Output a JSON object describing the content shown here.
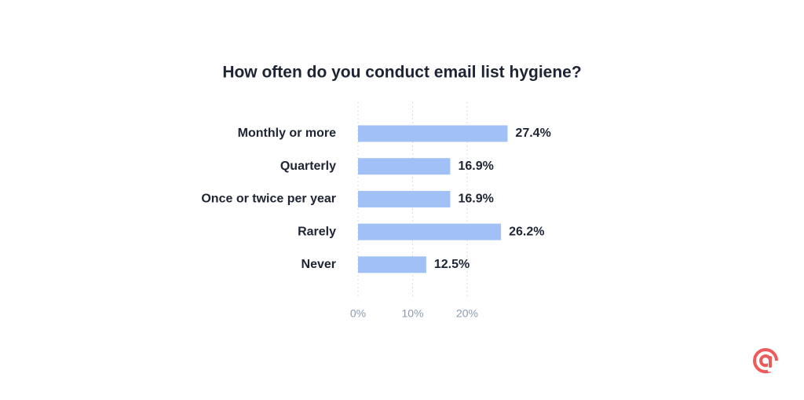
{
  "chart_data": {
    "type": "bar",
    "orientation": "horizontal",
    "title": "How often do you conduct email list hygiene?",
    "categories": [
      "Monthly or more",
      "Quarterly",
      "Once or twice per year",
      "Rarely",
      "Never"
    ],
    "values": [
      27.4,
      16.9,
      16.9,
      26.2,
      12.5
    ],
    "value_labels": [
      "27.4%",
      "16.9%",
      "16.9%",
      "26.2%",
      "12.5%"
    ],
    "color": "#a0c0f6",
    "xlim": [
      0,
      30
    ],
    "xticks": [
      {
        "value": 0,
        "label": "0%"
      },
      {
        "value": 10,
        "label": "10%"
      },
      {
        "value": 20,
        "label": "20%"
      }
    ],
    "grid": true
  }
}
